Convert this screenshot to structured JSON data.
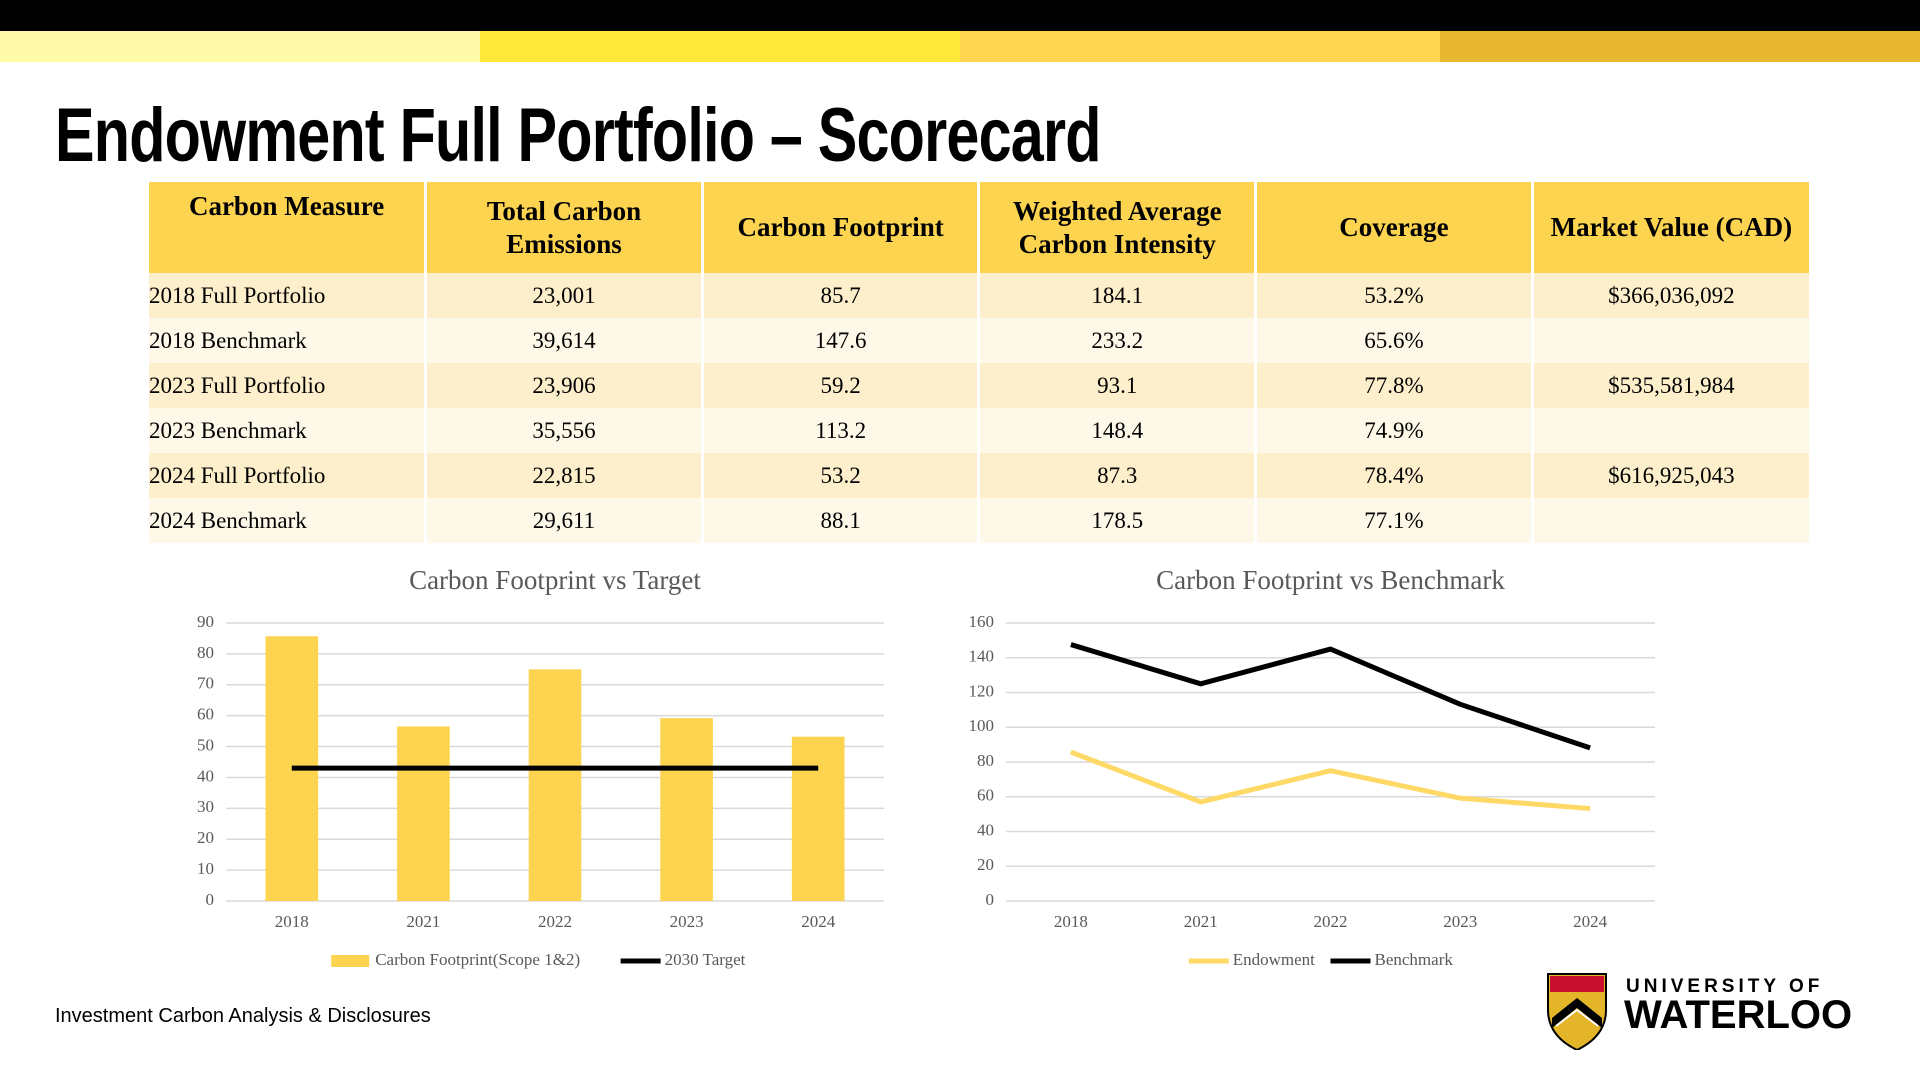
{
  "title": "Endowment Full Portfolio – Scorecard",
  "table": {
    "headers": [
      "Carbon Measure",
      "Total Carbon Emissions",
      "Carbon Footprint",
      "Weighted Average Carbon Intensity",
      "Coverage",
      "Market Value (CAD)"
    ],
    "rows": [
      [
        "2018 Full Portfolio",
        "23,001",
        "85.7",
        "184.1",
        "53.2%",
        "$366,036,092"
      ],
      [
        "2018 Benchmark",
        "39,614",
        "147.6",
        "233.2",
        "65.6%"
      ],
      [
        "2023 Full Portfolio",
        "23,906",
        "59.2",
        "93.1",
        "77.8%",
        "$535,581,984"
      ],
      [
        "2023 Benchmark",
        "35,556",
        "113.2",
        "148.4",
        "74.9%"
      ],
      [
        "2024 Full Portfolio",
        "22,815",
        "53.2",
        "87.3",
        "78.4%",
        "$616,925,043"
      ],
      [
        "2024 Benchmark",
        "29,611",
        "88.1",
        "178.5",
        "77.1%"
      ]
    ]
  },
  "chart_data": [
    {
      "type": "bar",
      "title": "Carbon Footprint vs Target",
      "categories": [
        "2018",
        "2021",
        "2022",
        "2023",
        "2024"
      ],
      "series": [
        {
          "name": "Carbon Footprint(Scope 1&2)",
          "type": "bar",
          "color": "#fdd44f",
          "values": [
            85.7,
            56.5,
            75,
            59.2,
            53.2
          ]
        },
        {
          "name": "2030 Target",
          "type": "line",
          "color": "#000000",
          "values": [
            43,
            43,
            43,
            43,
            43
          ]
        }
      ],
      "ylim": [
        0,
        90
      ],
      "yticks": [
        0,
        10,
        20,
        30,
        40,
        50,
        60,
        70,
        80,
        90
      ],
      "grid": true,
      "legend": "bottom"
    },
    {
      "type": "line",
      "title": "Carbon Footprint vs Benchmark",
      "categories": [
        "2018",
        "2021",
        "2022",
        "2023",
        "2024"
      ],
      "series": [
        {
          "name": "Endowment",
          "type": "line",
          "color": "#ffd966",
          "values": [
            85.7,
            57,
            75,
            59.2,
            53.2
          ]
        },
        {
          "name": "Benchmark",
          "type": "line",
          "color": "#000000",
          "values": [
            147.6,
            125,
            145,
            113.2,
            88.1
          ]
        }
      ],
      "ylim": [
        0,
        160
      ],
      "yticks": [
        0,
        20,
        40,
        60,
        80,
        100,
        120,
        140,
        160
      ],
      "grid": true,
      "legend": "bottom"
    }
  ],
  "footer": "Investment Carbon Analysis & Disclosures",
  "logo": {
    "line1": "UNIVERSITY OF",
    "line2": "WATERLOO"
  }
}
